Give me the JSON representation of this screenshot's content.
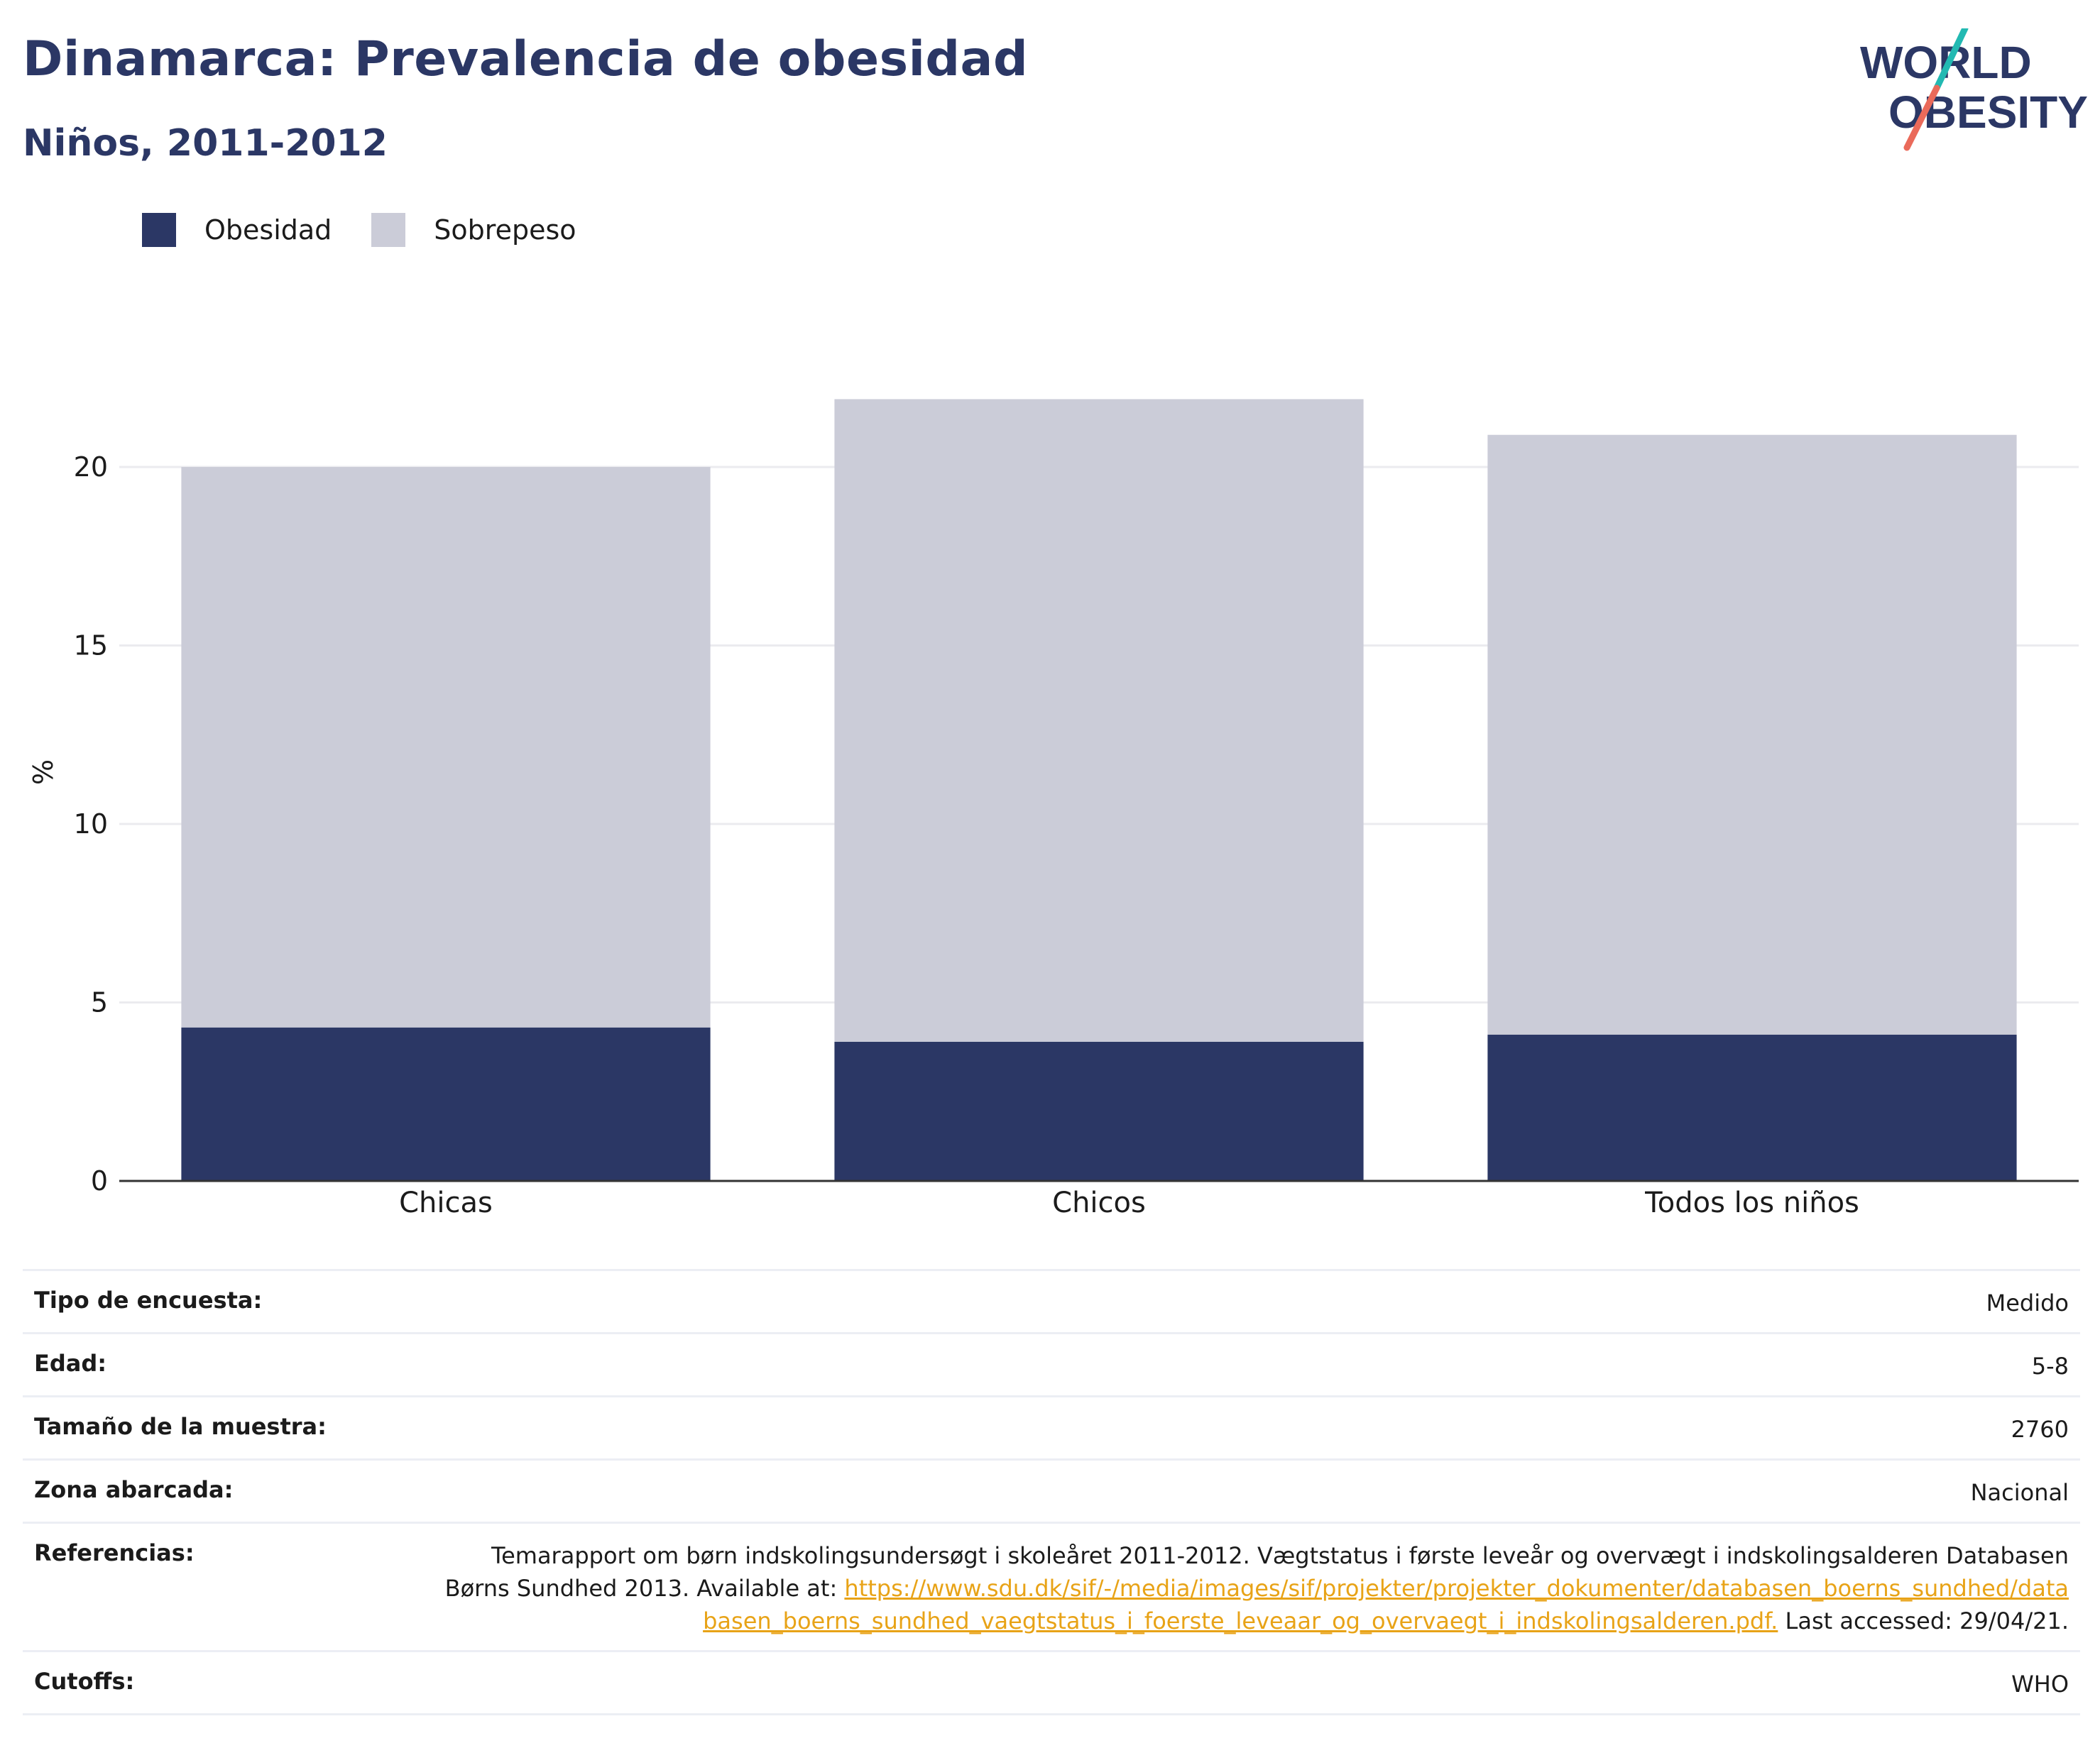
{
  "title": "Dinamarca: Prevalencia de obesidad",
  "subtitle": "Niños, 2011-2012",
  "logo": {
    "line1": "WORLD",
    "line2": "OBESITY"
  },
  "colors": {
    "obesity": "#2b3765",
    "overweight": "#cbccd8",
    "title": "#2b3765",
    "link": "#e8a317"
  },
  "chart_data": {
    "type": "bar",
    "stacked": true,
    "categories": [
      "Chicas",
      "Chicos",
      "Todos los niños"
    ],
    "series": [
      {
        "name": "Obesidad",
        "values": [
          4.3,
          3.9,
          4.1
        ]
      },
      {
        "name": "Sobrepeso",
        "values": [
          15.7,
          18.0,
          16.8
        ]
      }
    ],
    "ylabel": "%",
    "ylim": [
      0,
      22
    ],
    "yticks": [
      0,
      5,
      10,
      15,
      20
    ],
    "grid": true,
    "legend_position": "top-left"
  },
  "meta": [
    {
      "label": "Tipo de encuesta:",
      "value": "Medido"
    },
    {
      "label": "Edad:",
      "value": "5-8"
    },
    {
      "label": "Tamaño de la muestra:",
      "value": "2760"
    },
    {
      "label": "Zona abarcada:",
      "value": "Nacional"
    }
  ],
  "references": {
    "label": "Referencias:",
    "text_before": "Temarapport om børn indskolingsundersøgt i skoleåret 2011-2012. Vægtstatus i første leveår og overvægt i indskolingsalderen Databasen Børns Sundhed 2013. Available at: ",
    "link": "https://www.sdu.dk/sif/-/media/images/sif/projekter/projekter_dokumenter/databasen_boerns_sundhed/databasen_boerns_sundhed_vaegtstatus_i_foerste_leveaar_og_overvaegt_i_indskolingsalderen.pdf.",
    "text_after": " Last accessed: 29/04/21."
  },
  "cutoffs": {
    "label": "Cutoffs:",
    "value": "WHO"
  }
}
